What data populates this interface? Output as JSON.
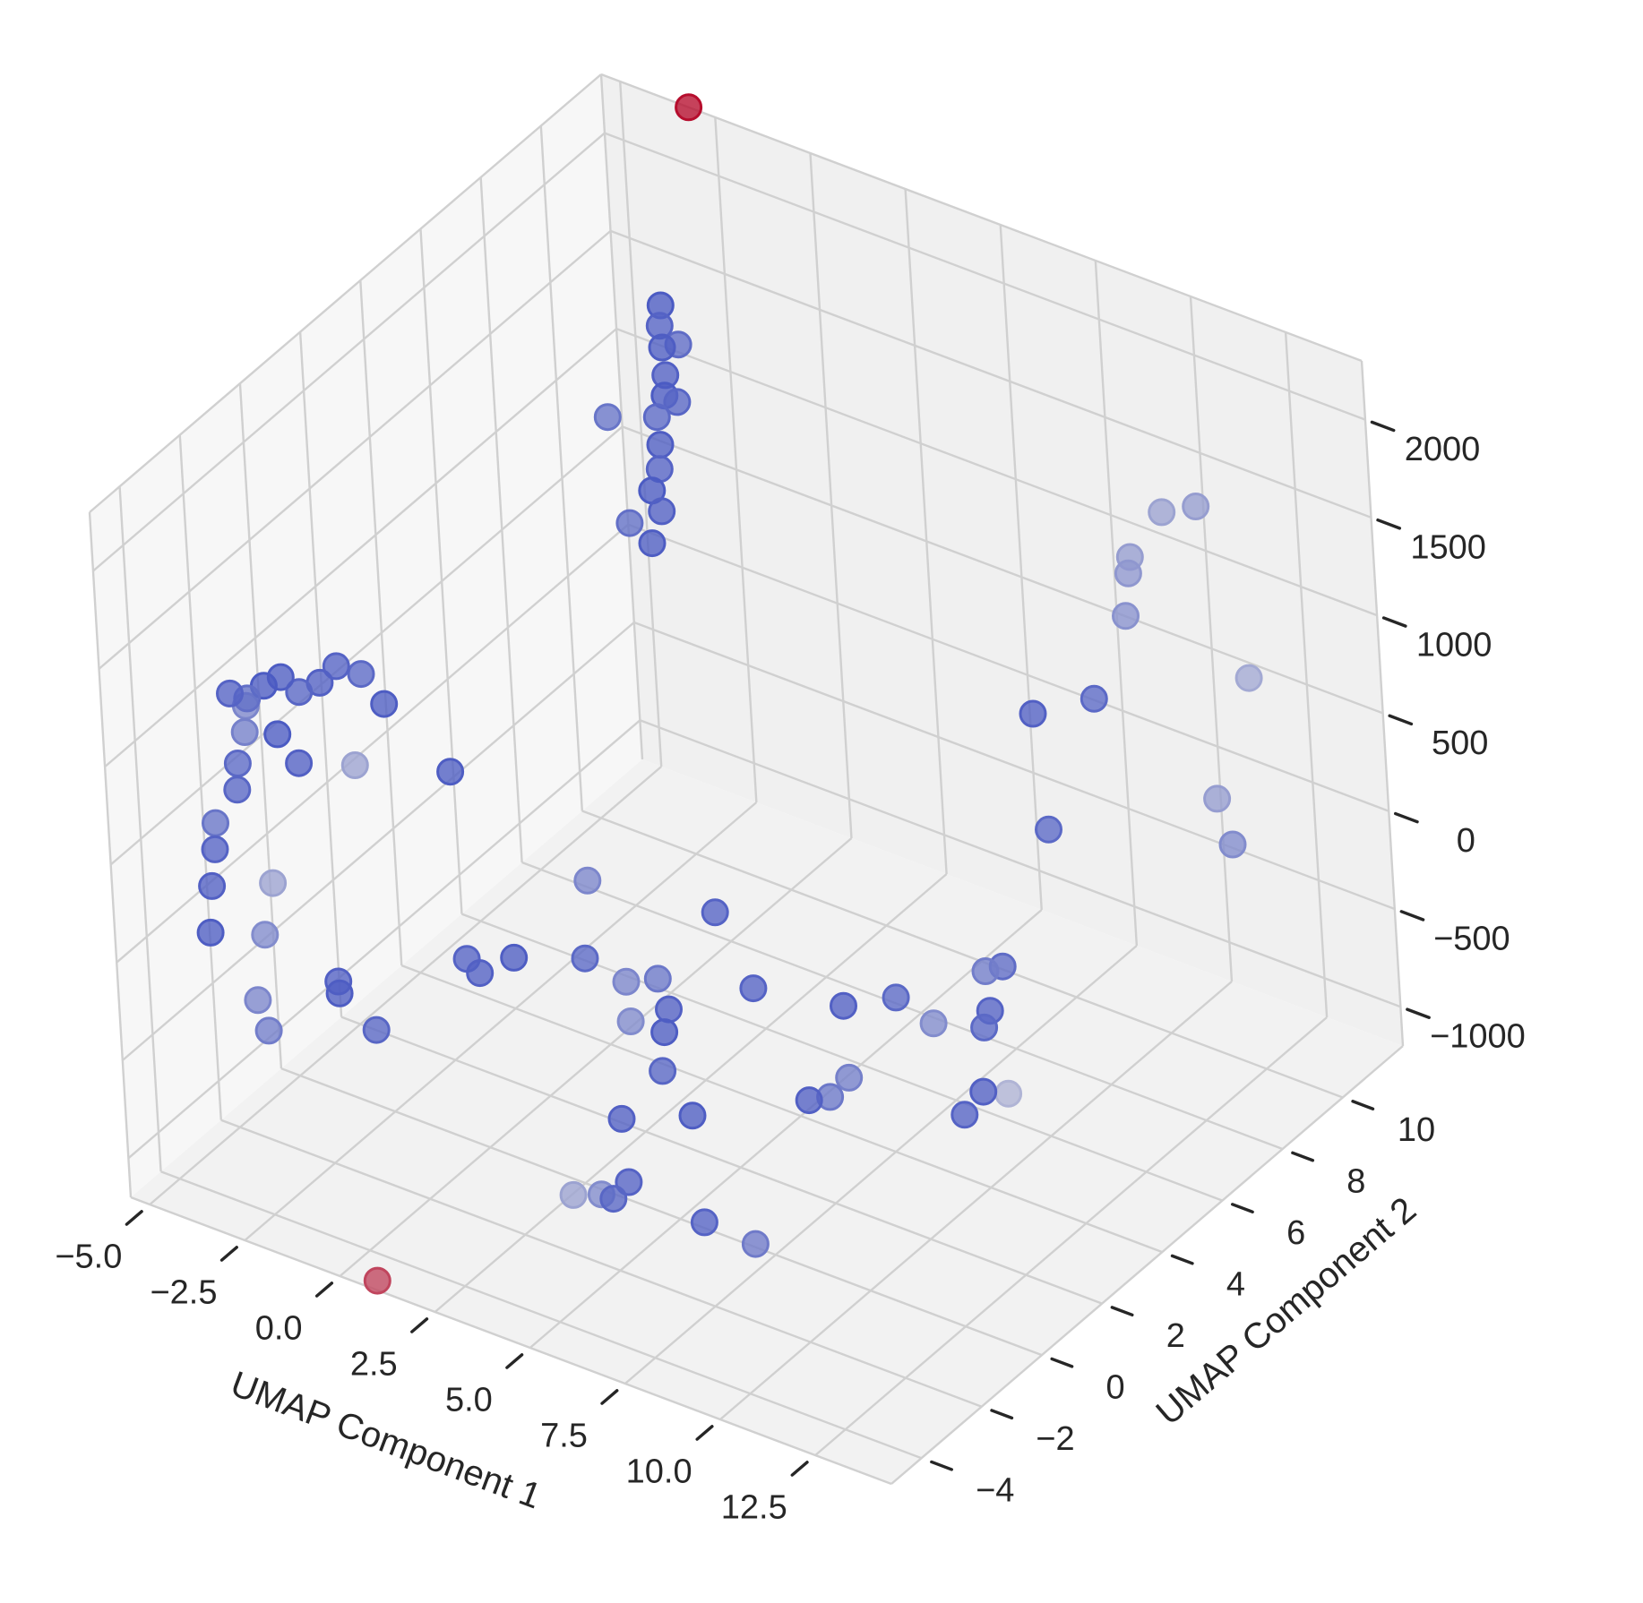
{
  "chart_data": {
    "type": "scatter",
    "projection": "3d",
    "xlabel": "UMAP Component 1",
    "ylabel": "UMAP Component 2",
    "zlabel": "",
    "xlim": [
      -5.5,
      14.5
    ],
    "ylim": [
      -5,
      12
    ],
    "zlim": [
      -1200,
      2300
    ],
    "xticks": [
      "−5.0",
      "−2.5",
      "0.0",
      "2.5",
      "5.0",
      "7.5",
      "10.0",
      "12.5"
    ],
    "xtick_values": [
      -5,
      -2.5,
      0,
      2.5,
      5,
      7.5,
      10,
      12.5
    ],
    "yticks": [
      "−4",
      "−2",
      "0",
      "2",
      "4",
      "6",
      "8",
      "10"
    ],
    "ytick_values": [
      -4,
      -2,
      0,
      2,
      4,
      6,
      8,
      10
    ],
    "zticks": [
      "−1000",
      "−500",
      "0",
      "500",
      "1000",
      "1500",
      "2000"
    ],
    "ztick_values": [
      -1000,
      -500,
      0,
      500,
      1000,
      1500,
      2000
    ],
    "grid": true,
    "colormap": "coolwarm",
    "colors": {
      "low": "#3b4cc0",
      "mid": "#dddddd",
      "high": "#b40426"
    },
    "points": [
      {
        "x": -3.0,
        "y": 10.5,
        "z": 1500,
        "c": 0.05
      },
      {
        "x": -2.8,
        "y": 10.2,
        "z": 1450,
        "c": 0.08
      },
      {
        "x": -2.6,
        "y": 10.0,
        "z": 1380,
        "c": 0.06
      },
      {
        "x": -2.3,
        "y": 9.7,
        "z": 1300,
        "c": 0.07
      },
      {
        "x": -2.1,
        "y": 9.4,
        "z": 1250,
        "c": 0.05
      },
      {
        "x": -2.0,
        "y": 9.0,
        "z": 1200,
        "c": 0.1
      },
      {
        "x": -1.7,
        "y": 8.7,
        "z": 1120,
        "c": 0.06
      },
      {
        "x": -1.5,
        "y": 8.4,
        "z": 1050,
        "c": 0.08
      },
      {
        "x": -1.4,
        "y": 8.0,
        "z": 1000,
        "c": 0.05
      },
      {
        "x": -1.0,
        "y": 7.8,
        "z": 950,
        "c": 0.07
      },
      {
        "x": -0.8,
        "y": 7.2,
        "z": 880,
        "c": 0.06
      },
      {
        "x": -1.2,
        "y": 7.0,
        "z": 980,
        "c": 0.12
      },
      {
        "x": -2.5,
        "y": 10.4,
        "z": 1350,
        "c": 0.11
      },
      {
        "x": -2.9,
        "y": 8.5,
        "z": 1200,
        "c": 0.14
      },
      {
        "x": -1.6,
        "y": 9.2,
        "z": 1280,
        "c": 0.09
      },
      {
        "x": -5.0,
        "y": -1.5,
        "z": 950,
        "c": 0.08
      },
      {
        "x": -4.8,
        "y": -1.2,
        "z": 900,
        "c": 0.12
      },
      {
        "x": -4.5,
        "y": -1.0,
        "z": 960,
        "c": 0.05
      },
      {
        "x": -4.2,
        "y": -0.8,
        "z": 1000,
        "c": 0.06
      },
      {
        "x": -3.9,
        "y": -0.6,
        "z": 920,
        "c": 0.09
      },
      {
        "x": -3.5,
        "y": -0.4,
        "z": 970,
        "c": 0.07
      },
      {
        "x": -3.2,
        "y": -0.2,
        "z": 1050,
        "c": 0.08
      },
      {
        "x": -2.8,
        "y": 0.1,
        "z": 1000,
        "c": 0.1
      },
      {
        "x": -2.4,
        "y": 0.3,
        "z": 850,
        "c": 0.06
      },
      {
        "x": -3.7,
        "y": -1.6,
        "z": 850,
        "c": 0.05
      },
      {
        "x": -3.0,
        "y": -1.8,
        "z": 780,
        "c": 0.07
      },
      {
        "x": -5.1,
        "y": -0.9,
        "z": 800,
        "c": 0.2
      },
      {
        "x": -5.0,
        "y": -1.1,
        "z": 700,
        "c": 0.18
      },
      {
        "x": -4.9,
        "y": -1.5,
        "z": 600,
        "c": 0.1
      },
      {
        "x": -4.7,
        "y": -1.8,
        "z": 520,
        "c": 0.09
      },
      {
        "x": -5.0,
        "y": -2.2,
        "z": 380,
        "c": 0.14
      },
      {
        "x": -4.8,
        "y": -2.5,
        "z": 300,
        "c": 0.08
      },
      {
        "x": -4.6,
        "y": -2.9,
        "z": 180,
        "c": 0.07
      },
      {
        "x": -4.2,
        "y": -3.5,
        "z": 50,
        "c": 0.06
      },
      {
        "x": -3.2,
        "y": 12.0,
        "z": 2300,
        "c": 0.98
      },
      {
        "x": 11.0,
        "y": 9.5,
        "z": 1600,
        "c": 0.3
      },
      {
        "x": 11.5,
        "y": 10.0,
        "z": 1600,
        "c": 0.28
      },
      {
        "x": 10.5,
        "y": 9.0,
        "z": 1400,
        "c": 0.28
      },
      {
        "x": 10.6,
        "y": 8.8,
        "z": 1350,
        "c": 0.26
      },
      {
        "x": 10.8,
        "y": 8.4,
        "z": 1200,
        "c": 0.24
      },
      {
        "x": 10.5,
        "y": 7.6,
        "z": 860,
        "c": 0.1
      },
      {
        "x": 12.4,
        "y": 10.3,
        "z": 750,
        "c": 0.32
      },
      {
        "x": 9.0,
        "y": 7.4,
        "z": 700,
        "c": 0.07
      },
      {
        "x": 10.0,
        "y": 6.5,
        "z": 300,
        "c": 0.1
      },
      {
        "x": 12.2,
        "y": 9.3,
        "z": 250,
        "c": 0.28
      },
      {
        "x": 12.8,
        "y": 9.0,
        "z": 100,
        "c": 0.22
      },
      {
        "x": -4.3,
        "y": 1.5,
        "z": 240,
        "c": 0.3
      },
      {
        "x": -2.6,
        "y": 2.5,
        "z": 200,
        "c": 0.06
      },
      {
        "x": 1.0,
        "y": 2.4,
        "z": -80,
        "c": 0.2
      },
      {
        "x": 3.7,
        "y": 3.2,
        "z": -150,
        "c": 0.08
      },
      {
        "x": -5.0,
        "y": -0.5,
        "z": -150,
        "c": 0.3
      },
      {
        "x": -4.7,
        "y": -1.2,
        "z": -300,
        "c": 0.22
      },
      {
        "x": -4.4,
        "y": -1.9,
        "z": -520,
        "c": 0.2
      },
      {
        "x": -3.9,
        "y": -2.2,
        "z": -600,
        "c": 0.17
      },
      {
        "x": -2.8,
        "y": -1.2,
        "z": -400,
        "c": 0.07
      },
      {
        "x": -2.7,
        "y": -1.3,
        "z": -440,
        "c": 0.06
      },
      {
        "x": -1.6,
        "y": -1.5,
        "z": -520,
        "c": 0.09
      },
      {
        "x": -0.5,
        "y": 0.2,
        "z": -300,
        "c": 0.08
      },
      {
        "x": 0.0,
        "y": 0.0,
        "z": -310,
        "c": 0.07
      },
      {
        "x": 0.6,
        "y": 0.4,
        "z": -240,
        "c": 0.06
      },
      {
        "x": 2.0,
        "y": 1.0,
        "z": -220,
        "c": 0.1
      },
      {
        "x": 2.9,
        "y": 1.2,
        "z": -300,
        "c": 0.2
      },
      {
        "x": 3.5,
        "y": 1.5,
        "z": -280,
        "c": 0.15
      },
      {
        "x": 4.0,
        "y": 1.2,
        "z": -360,
        "c": 0.07
      },
      {
        "x": 3.3,
        "y": 0.8,
        "z": -420,
        "c": 0.22
      },
      {
        "x": 4.1,
        "y": 0.9,
        "z": -430,
        "c": 0.06
      },
      {
        "x": 4.5,
        "y": 0.3,
        "z": -520,
        "c": 0.09
      },
      {
        "x": 5.8,
        "y": 1.8,
        "z": -200,
        "c": 0.08
      },
      {
        "x": 7.6,
        "y": 2.5,
        "z": -250,
        "c": 0.07
      },
      {
        "x": 8.6,
        "y": 3.0,
        "z": -200,
        "c": 0.1
      },
      {
        "x": 9.4,
        "y": 3.2,
        "z": -300,
        "c": 0.22
      },
      {
        "x": 10.2,
        "y": 4.0,
        "z": -80,
        "c": 0.17
      },
      {
        "x": 10.5,
        "y": 4.2,
        "z": -60,
        "c": 0.11
      },
      {
        "x": 10.6,
        "y": 3.6,
        "z": -200,
        "c": 0.08
      },
      {
        "x": 10.5,
        "y": 3.5,
        "z": -280,
        "c": 0.1
      },
      {
        "x": 8.4,
        "y": 1.6,
        "z": -440,
        "c": 0.18
      },
      {
        "x": 8.2,
        "y": 1.2,
        "z": -500,
        "c": 0.15
      },
      {
        "x": 7.8,
        "y": 1.0,
        "z": -520,
        "c": 0.07
      },
      {
        "x": 10.8,
        "y": 3.0,
        "z": -520,
        "c": 0.07
      },
      {
        "x": 10.6,
        "y": 2.6,
        "z": -600,
        "c": 0.08
      },
      {
        "x": 11.3,
        "y": 3.2,
        "z": -520,
        "c": 0.36
      },
      {
        "x": 4.6,
        "y": -1.2,
        "z": -560,
        "c": 0.07
      },
      {
        "x": 6.0,
        "y": -0.6,
        "z": -520,
        "c": 0.06
      },
      {
        "x": 5.2,
        "y": -1.8,
        "z": -760,
        "c": 0.08
      },
      {
        "x": 5.1,
        "y": -2.2,
        "z": -800,
        "c": 0.09
      },
      {
        "x": 4.7,
        "y": -2.1,
        "z": -820,
        "c": 0.22
      },
      {
        "x": 4.2,
        "y": -2.4,
        "z": -820,
        "c": 0.3
      },
      {
        "x": 7.0,
        "y": -1.6,
        "z": -860,
        "c": 0.08
      },
      {
        "x": 8.0,
        "y": -1.2,
        "z": -950,
        "c": 0.16
      },
      {
        "x": 1.0,
        "y": -5.0,
        "z": -1150,
        "c": 0.85
      }
    ]
  }
}
